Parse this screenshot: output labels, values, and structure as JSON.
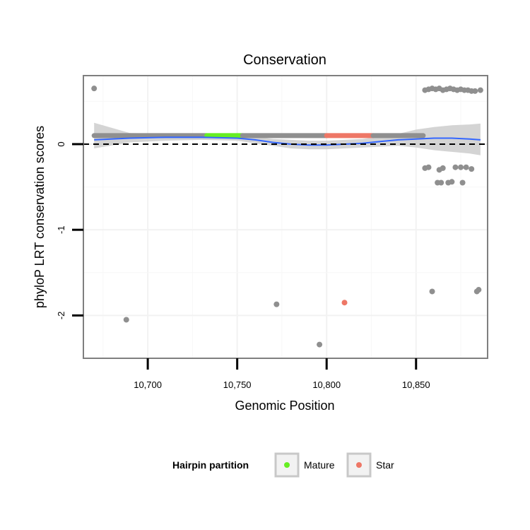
{
  "chart_data": {
    "type": "scatter",
    "title": "Conservation",
    "xlabel": "Genomic Position",
    "ylabel": "phyloP LRT conservation scores",
    "xlim": [
      10664,
      10890
    ],
    "ylim": [
      -2.5,
      0.8
    ],
    "x_ticks": [
      10700,
      10750,
      10800,
      10850
    ],
    "x_tick_labels": [
      "10,700",
      "10,750",
      "10,800",
      "10,850"
    ],
    "y_ticks": [
      -2,
      -1,
      0
    ],
    "y_tick_labels": [
      "-2",
      "-1",
      "0"
    ],
    "reference_line": {
      "y": 0,
      "style": "dashed"
    },
    "grid": true,
    "colors": {
      "other": "#8f8f8f",
      "mature": "#66ee22",
      "star": "#ee7766",
      "smooth": "#3366ff",
      "ribbon": "#cccccc",
      "panel_border": "#7f7f7f"
    },
    "legend": {
      "title": "Hairpin partition",
      "position": "bottom",
      "entries": [
        {
          "key": "mature",
          "label": "Mature"
        },
        {
          "key": "star",
          "label": "Star"
        }
      ]
    },
    "band_segments": [
      {
        "partition": "other",
        "x_start": 10670,
        "x_end": 10733,
        "y": 0.1
      },
      {
        "partition": "mature",
        "x_start": 10733,
        "x_end": 10753,
        "y": 0.1
      },
      {
        "partition": "other",
        "x_start": 10753,
        "x_end": 10800,
        "y": 0.1
      },
      {
        "partition": "star",
        "x_start": 10800,
        "x_end": 10826,
        "y": 0.1
      },
      {
        "partition": "other",
        "x_start": 10826,
        "x_end": 10854,
        "y": 0.1
      }
    ],
    "points": [
      {
        "x": 10670,
        "y": 0.65,
        "partition": "other"
      },
      {
        "x": 10688,
        "y": -2.05,
        "partition": "other"
      },
      {
        "x": 10772,
        "y": -1.87,
        "partition": "other"
      },
      {
        "x": 10796,
        "y": -2.34,
        "partition": "other"
      },
      {
        "x": 10810,
        "y": -1.85,
        "partition": "star"
      },
      {
        "x": 10859,
        "y": -1.72,
        "partition": "other"
      },
      {
        "x": 10884,
        "y": -1.72,
        "partition": "other"
      },
      {
        "x": 10885,
        "y": -1.7,
        "partition": "other"
      },
      {
        "x": 10855,
        "y": 0.63,
        "partition": "other"
      },
      {
        "x": 10857,
        "y": 0.64,
        "partition": "other"
      },
      {
        "x": 10859,
        "y": 0.65,
        "partition": "other"
      },
      {
        "x": 10861,
        "y": 0.64,
        "partition": "other"
      },
      {
        "x": 10863,
        "y": 0.65,
        "partition": "other"
      },
      {
        "x": 10865,
        "y": 0.63,
        "partition": "other"
      },
      {
        "x": 10867,
        "y": 0.64,
        "partition": "other"
      },
      {
        "x": 10869,
        "y": 0.65,
        "partition": "other"
      },
      {
        "x": 10871,
        "y": 0.64,
        "partition": "other"
      },
      {
        "x": 10873,
        "y": 0.63,
        "partition": "other"
      },
      {
        "x": 10875,
        "y": 0.64,
        "partition": "other"
      },
      {
        "x": 10877,
        "y": 0.63,
        "partition": "other"
      },
      {
        "x": 10879,
        "y": 0.63,
        "partition": "other"
      },
      {
        "x": 10881,
        "y": 0.62,
        "partition": "other"
      },
      {
        "x": 10883,
        "y": 0.62,
        "partition": "other"
      },
      {
        "x": 10886,
        "y": 0.63,
        "partition": "other"
      },
      {
        "x": 10855,
        "y": -0.28,
        "partition": "other"
      },
      {
        "x": 10857,
        "y": -0.27,
        "partition": "other"
      },
      {
        "x": 10863,
        "y": -0.3,
        "partition": "other"
      },
      {
        "x": 10865,
        "y": -0.28,
        "partition": "other"
      },
      {
        "x": 10872,
        "y": -0.27,
        "partition": "other"
      },
      {
        "x": 10875,
        "y": -0.27,
        "partition": "other"
      },
      {
        "x": 10878,
        "y": -0.27,
        "partition": "other"
      },
      {
        "x": 10881,
        "y": -0.29,
        "partition": "other"
      },
      {
        "x": 10862,
        "y": -0.45,
        "partition": "other"
      },
      {
        "x": 10864,
        "y": -0.45,
        "partition": "other"
      },
      {
        "x": 10868,
        "y": -0.45,
        "partition": "other"
      },
      {
        "x": 10870,
        "y": -0.44,
        "partition": "other"
      },
      {
        "x": 10876,
        "y": -0.45,
        "partition": "other"
      }
    ],
    "smooth_line": [
      {
        "x": 10670,
        "y": 0.05,
        "lo": -0.05,
        "hi": 0.25
      },
      {
        "x": 10690,
        "y": 0.07,
        "lo": 0.02,
        "hi": 0.13
      },
      {
        "x": 10710,
        "y": 0.08,
        "lo": 0.04,
        "hi": 0.12
      },
      {
        "x": 10730,
        "y": 0.08,
        "lo": 0.05,
        "hi": 0.12
      },
      {
        "x": 10750,
        "y": 0.07,
        "lo": 0.04,
        "hi": 0.11
      },
      {
        "x": 10760,
        "y": 0.05,
        "lo": 0.01,
        "hi": 0.09
      },
      {
        "x": 10770,
        "y": 0.02,
        "lo": -0.02,
        "hi": 0.06
      },
      {
        "x": 10780,
        "y": 0.0,
        "lo": -0.05,
        "hi": 0.05
      },
      {
        "x": 10790,
        "y": -0.01,
        "lo": -0.06,
        "hi": 0.04
      },
      {
        "x": 10800,
        "y": -0.01,
        "lo": -0.06,
        "hi": 0.04
      },
      {
        "x": 10810,
        "y": 0.0,
        "lo": -0.05,
        "hi": 0.05
      },
      {
        "x": 10820,
        "y": 0.01,
        "lo": -0.04,
        "hi": 0.06
      },
      {
        "x": 10830,
        "y": 0.03,
        "lo": -0.03,
        "hi": 0.09
      },
      {
        "x": 10840,
        "y": 0.05,
        "lo": -0.02,
        "hi": 0.12
      },
      {
        "x": 10850,
        "y": 0.06,
        "lo": -0.04,
        "hi": 0.17
      },
      {
        "x": 10860,
        "y": 0.07,
        "lo": -0.07,
        "hi": 0.2
      },
      {
        "x": 10870,
        "y": 0.07,
        "lo": -0.09,
        "hi": 0.22
      },
      {
        "x": 10880,
        "y": 0.06,
        "lo": -0.11,
        "hi": 0.23
      },
      {
        "x": 10886,
        "y": 0.05,
        "lo": -0.13,
        "hi": 0.24
      }
    ]
  }
}
